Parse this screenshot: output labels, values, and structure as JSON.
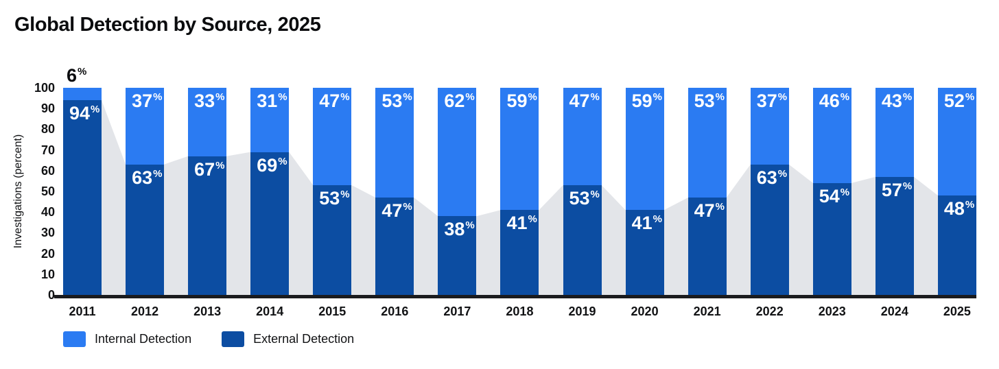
{
  "title": "Global Detection by Source, 2025",
  "chart_data": {
    "type": "bar",
    "subtype": "stacked-percentage",
    "title": "Global Detection by Source, 2025",
    "categories": [
      "2011",
      "2012",
      "2013",
      "2014",
      "2015",
      "2016",
      "2017",
      "2018",
      "2019",
      "2020",
      "2021",
      "2022",
      "2023",
      "2024",
      "2025"
    ],
    "series": [
      {
        "name": "Internal Detection",
        "color": "#2b7bf2",
        "values": [
          6,
          37,
          33,
          31,
          47,
          53,
          62,
          59,
          47,
          59,
          53,
          37,
          46,
          43,
          52
        ]
      },
      {
        "name": "External Detection",
        "color": "#0c4da2",
        "values": [
          94,
          63,
          67,
          69,
          53,
          47,
          38,
          41,
          53,
          41,
          47,
          63,
          54,
          57,
          48
        ]
      }
    ],
    "background_area": {
      "description": "gray silhouette area behind bars tracing External Detection values, filled to baseline",
      "color": "#e3e5e9",
      "values": [
        94,
        63,
        67,
        69,
        53,
        47,
        38,
        41,
        53,
        41,
        47,
        63,
        54,
        57,
        48
      ]
    },
    "unit_symbol": "%",
    "xlabel": "",
    "ylabel": "Investigations (percent)",
    "ylim": [
      0,
      100
    ],
    "y_ticks": [
      0,
      10,
      20,
      30,
      40,
      50,
      60,
      70,
      80,
      90,
      100
    ],
    "grid": false,
    "legend_position": "bottom-left",
    "value_label_color": "#ffffff",
    "small_segment_label_color": "#0c0d0f",
    "small_segment_threshold": 10,
    "axis_line_color": "#1a1b1e"
  }
}
